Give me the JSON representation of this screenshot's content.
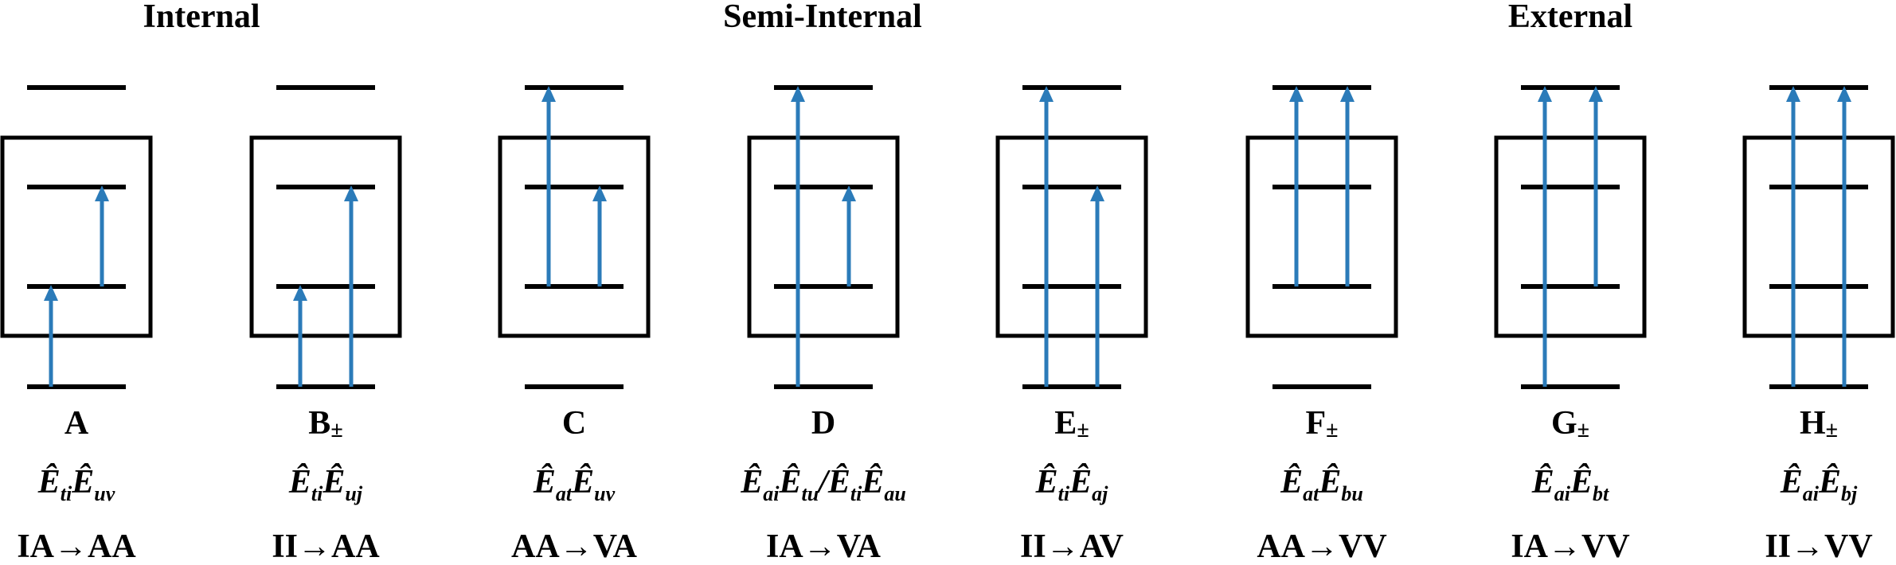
{
  "colors": {
    "arrow": "#2b7bb9",
    "line": "#000000"
  },
  "groups": [
    {
      "label": "Internal"
    },
    {
      "label": "Semi-Internal"
    },
    {
      "label": "External"
    }
  ],
  "diagrams": [
    {
      "code": "A",
      "subscript": "",
      "operators": [
        {
          "idx": "ti"
        },
        {
          "idx": "uv"
        }
      ],
      "separator": "",
      "transition": "IA→AA",
      "excitations": [
        {
          "from": 0,
          "to": 1
        },
        {
          "from": 1,
          "to": 2
        }
      ]
    },
    {
      "code": "B",
      "subscript": "±",
      "operators": [
        {
          "idx": "ti"
        },
        {
          "idx": "uj"
        }
      ],
      "separator": "",
      "transition": "II→AA",
      "excitations": [
        {
          "from": 0,
          "to": 1
        },
        {
          "from": 0,
          "to": 2
        }
      ]
    },
    {
      "code": "C",
      "subscript": "",
      "operators": [
        {
          "idx": "at"
        },
        {
          "idx": "uv"
        }
      ],
      "separator": "",
      "transition": "AA→VA",
      "excitations": [
        {
          "from": 1,
          "to": 3
        },
        {
          "from": 1,
          "to": 2
        }
      ]
    },
    {
      "code": "D",
      "subscript": "",
      "operators": [
        {
          "idx": "ai"
        },
        {
          "idx": "tu"
        },
        {
          "idx": "ti"
        },
        {
          "idx": "au"
        }
      ],
      "separator": "/",
      "transition": "IA→VA",
      "excitations": [
        {
          "from": 0,
          "to": 3
        },
        {
          "from": 1,
          "to": 2
        }
      ]
    },
    {
      "code": "E",
      "subscript": "±",
      "operators": [
        {
          "idx": "ti"
        },
        {
          "idx": "aj"
        }
      ],
      "separator": "",
      "transition": "II→AV",
      "excitations": [
        {
          "from": 0,
          "to": 3
        },
        {
          "from": 0,
          "to": 2
        }
      ]
    },
    {
      "code": "F",
      "subscript": "±",
      "operators": [
        {
          "idx": "at"
        },
        {
          "idx": "bu"
        }
      ],
      "separator": "",
      "transition": "AA→VV",
      "excitations": [
        {
          "from": 1,
          "to": 3
        },
        {
          "from": 1,
          "to": 3
        }
      ]
    },
    {
      "code": "G",
      "subscript": "±",
      "operators": [
        {
          "idx": "ai"
        },
        {
          "idx": "bt"
        }
      ],
      "separator": "",
      "transition": "IA→VV",
      "excitations": [
        {
          "from": 0,
          "to": 3
        },
        {
          "from": 1,
          "to": 3
        }
      ]
    },
    {
      "code": "H",
      "subscript": "±",
      "operators": [
        {
          "idx": "ai"
        },
        {
          "idx": "bj"
        }
      ],
      "separator": "",
      "transition": "II→VV",
      "excitations": [
        {
          "from": 0,
          "to": 3
        },
        {
          "from": 0,
          "to": 3
        }
      ]
    }
  ]
}
